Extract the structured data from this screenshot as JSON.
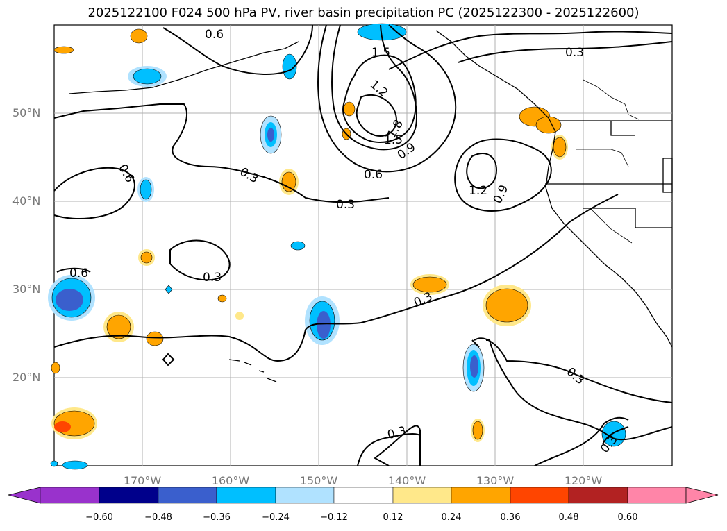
{
  "title": "2025122100 F024 500 hPa PV, river basin precipitation PC (2025122300 - 2025122600)",
  "lat_labels": [
    "50°N",
    "40°N",
    "30°N",
    "20°N"
  ],
  "lon_labels": [
    "170°W",
    "160°W",
    "150°W",
    "140°W",
    "130°W",
    "120°W"
  ],
  "contour_labels": [
    "0.6",
    "1.5",
    "0.3",
    "1.2",
    "1.8",
    "1.5",
    "0.9",
    "0.6",
    "0.3",
    "0.6",
    "0.3",
    "1.2",
    "0.9",
    "0.6",
    "0.3",
    "0.3",
    "0.3",
    "0.3",
    "0.3"
  ],
  "colorbar": {
    "ticks": [
      "−0.60",
      "−0.48",
      "−0.36",
      "−0.24",
      "−0.12",
      "0.12",
      "0.24",
      "0.36",
      "0.48",
      "0.60"
    ],
    "colors": [
      "#9932cc",
      "#00008b",
      "#3a5fcd",
      "#00bfff",
      "#b0e2ff",
      "#ffffff",
      "#ffe88a",
      "#ffa500",
      "#ff4500",
      "#b22222",
      "#ff85a8"
    ]
  }
}
